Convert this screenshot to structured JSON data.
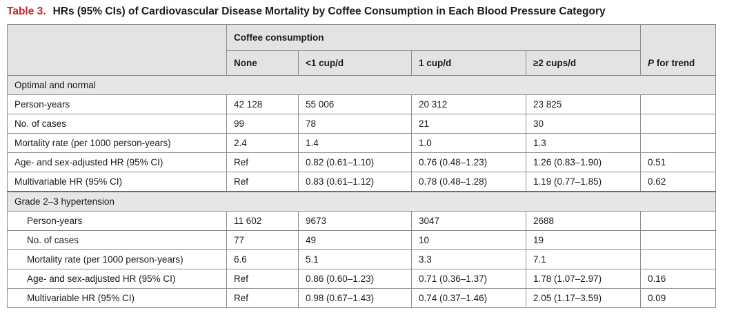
{
  "caption": {
    "label": "Table 3.",
    "title": "HRs (95% CIs) of Cardiovascular Disease Mortality by Coffee Consumption in Each Blood Pressure Category"
  },
  "header": {
    "group_label": "Coffee consumption",
    "columns": [
      "None",
      "<1 cup/d",
      "1 cup/d",
      "≥2 cups/d"
    ],
    "trend_p": "P",
    "trend_rest": " for trend"
  },
  "sections": [
    {
      "title": "Optimal and normal",
      "rows": [
        {
          "label": "Person-years",
          "values": [
            "42 128",
            "55 006",
            "20 312",
            "23 825"
          ],
          "trend": ""
        },
        {
          "label": "No. of cases",
          "values": [
            "99",
            "78",
            "21",
            "30"
          ],
          "trend": ""
        },
        {
          "label": "Mortality rate (per 1000 person-years)",
          "values": [
            "2.4",
            "1.4",
            "1.0",
            "1.3"
          ],
          "trend": ""
        },
        {
          "label": "Age- and sex-adjusted HR (95% CI)",
          "values": [
            "Ref",
            "0.82 (0.61–1.10)",
            "0.76 (0.48–1.23)",
            "1.26 (0.83–1.90)"
          ],
          "trend": "0.51"
        },
        {
          "label": "Multivariable HR (95% CI)",
          "values": [
            "Ref",
            "0.83 (0.61–1.12)",
            "0.78 (0.48–1.28)",
            "1.19 (0.77–1.85)"
          ],
          "trend": "0.62"
        }
      ]
    },
    {
      "title": "Grade 2–3 hypertension",
      "rows": [
        {
          "label": "Person-years",
          "values": [
            "11 602",
            "9673",
            "3047",
            "2688"
          ],
          "trend": ""
        },
        {
          "label": "No. of cases",
          "values": [
            "77",
            "49",
            "10",
            "19"
          ],
          "trend": ""
        },
        {
          "label": "Mortality rate (per 1000 person-years)",
          "values": [
            "6.6",
            "5.1",
            "3.3",
            "7.1"
          ],
          "trend": ""
        },
        {
          "label": "Age- and sex-adjusted HR (95% CI)",
          "values": [
            "Ref",
            "0.86 (0.60–1.23)",
            "0.71 (0.36–1.37)",
            "1.78 (1.07–2.97)"
          ],
          "trend": "0.16"
        },
        {
          "label": "Multivariable HR (95% CI)",
          "values": [
            "Ref",
            "0.98 (0.67–1.43)",
            "0.74 (0.37–1.46)",
            "2.05 (1.17–3.59)"
          ],
          "trend": "0.09"
        }
      ]
    }
  ]
}
